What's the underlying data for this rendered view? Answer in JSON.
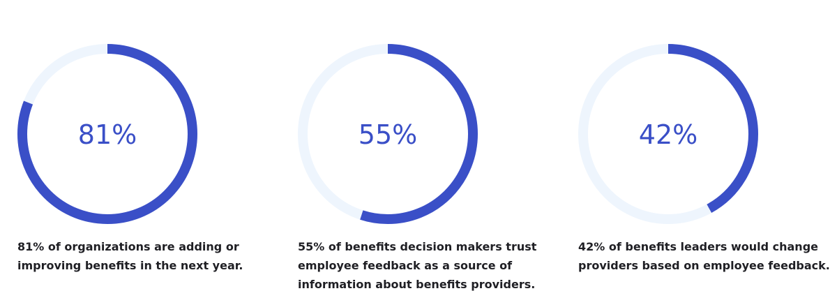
{
  "chart_data": [
    {
      "type": "donut",
      "values": [
        81
      ],
      "value_labels": [
        "81%"
      ],
      "color": "#3a4fc7",
      "track_color": "#eef5fd",
      "caption": [
        "81% of organizations are adding or",
        "improving benefits in the next year."
      ]
    },
    {
      "type": "donut",
      "values": [
        55
      ],
      "value_labels": [
        "55%"
      ],
      "color": "#3a4fc7",
      "track_color": "#eef5fd",
      "caption": [
        "55% of benefits decision makers trust",
        "employee feedback as a source of",
        "information about benefits providers."
      ]
    },
    {
      "type": "donut",
      "values": [
        42
      ],
      "value_labels": [
        "42%"
      ],
      "color": "#3a4fc7",
      "track_color": "#eef5fd",
      "caption": [
        "42% of benefits leaders would change",
        "providers based on employee feedback."
      ]
    }
  ]
}
